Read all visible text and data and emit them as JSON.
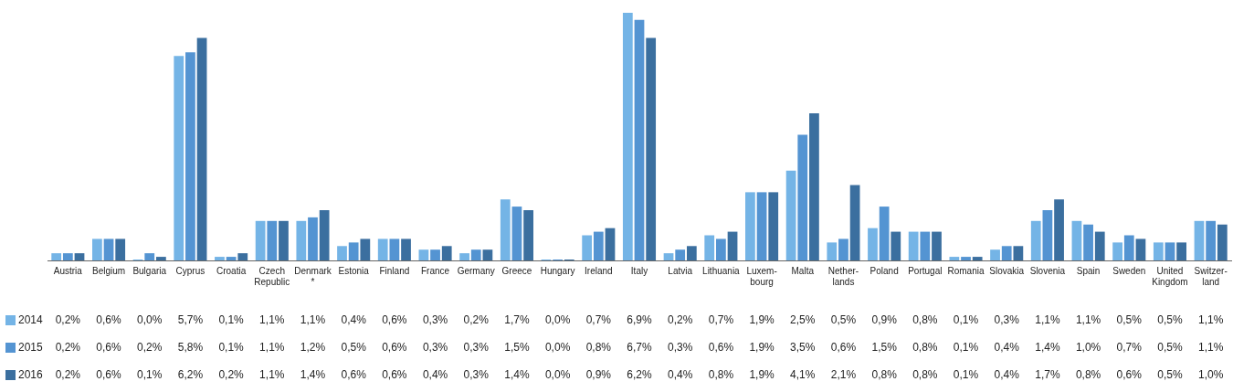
{
  "chart_data": {
    "type": "bar",
    "categories": [
      "Austria",
      "Belgium",
      "Bulgaria",
      "Cyprus",
      "Croatia",
      "Czech Republic",
      "Denmark *",
      "Estonia",
      "Finland",
      "France",
      "Germany",
      "Greece",
      "Hungary",
      "Ireland",
      "Italy",
      "Latvia",
      "Lithuania",
      "Luxem- bourg",
      "Malta",
      "Nether- lands",
      "Poland",
      "Portugal",
      "Romania",
      "Slovakia",
      "Slovenia",
      "Spain",
      "Sweden",
      "United Kingdom",
      "Switzer- land"
    ],
    "series": [
      {
        "name": "2014",
        "color": "#74b4e6",
        "values": [
          0.2,
          0.6,
          0.0,
          5.7,
          0.1,
          1.1,
          1.1,
          0.4,
          0.6,
          0.3,
          0.2,
          1.7,
          0.0,
          0.7,
          6.9,
          0.2,
          0.7,
          1.9,
          2.5,
          0.5,
          0.9,
          0.8,
          0.1,
          0.3,
          1.1,
          1.1,
          0.5,
          0.5,
          1.1
        ],
        "value_labels": [
          "0,2%",
          "0,6%",
          "0,0%",
          "5,7%",
          "0,1%",
          "1,1%",
          "1,1%",
          "0,4%",
          "0,6%",
          "0,3%",
          "0,2%",
          "1,7%",
          "0,0%",
          "0,7%",
          "6,9%",
          "0,2%",
          "0,7%",
          "1,9%",
          "2,5%",
          "0,5%",
          "0,9%",
          "0,8%",
          "0,1%",
          "0,3%",
          "1,1%",
          "1,1%",
          "0,5%",
          "0,5%",
          "1,1%"
        ]
      },
      {
        "name": "2015",
        "color": "#5494d2",
        "values": [
          0.2,
          0.6,
          0.2,
          5.8,
          0.1,
          1.1,
          1.2,
          0.5,
          0.6,
          0.3,
          0.3,
          1.5,
          0.0,
          0.8,
          6.7,
          0.3,
          0.6,
          1.9,
          3.5,
          0.6,
          1.5,
          0.8,
          0.1,
          0.4,
          1.4,
          1.0,
          0.7,
          0.5,
          1.1
        ],
        "value_labels": [
          "0,2%",
          "0,6%",
          "0,2%",
          "5,8%",
          "0,1%",
          "1,1%",
          "1,2%",
          "0,5%",
          "0,6%",
          "0,3%",
          "0,3%",
          "1,5%",
          "0,0%",
          "0,8%",
          "6,7%",
          "0,3%",
          "0,6%",
          "1,9%",
          "3,5%",
          "0,6%",
          "1,5%",
          "0,8%",
          "0,1%",
          "0,4%",
          "1,4%",
          "1,0%",
          "0,7%",
          "0,5%",
          "1,1%"
        ]
      },
      {
        "name": "2016",
        "color": "#3b6f9f",
        "values": [
          0.2,
          0.6,
          0.1,
          6.2,
          0.2,
          1.1,
          1.4,
          0.6,
          0.6,
          0.4,
          0.3,
          1.4,
          0.0,
          0.9,
          6.2,
          0.4,
          0.8,
          1.9,
          4.1,
          2.1,
          0.8,
          0.8,
          0.1,
          0.4,
          1.7,
          0.8,
          0.6,
          0.5,
          1.0
        ],
        "value_labels": [
          "0,2%",
          "0,6%",
          "0,1%",
          "6,2%",
          "0,2%",
          "1,1%",
          "1,4%",
          "0,6%",
          "0,6%",
          "0,4%",
          "0,3%",
          "1,4%",
          "0,0%",
          "0,9%",
          "6,2%",
          "0,4%",
          "0,8%",
          "1,9%",
          "4,1%",
          "2,1%",
          "0,8%",
          "0,8%",
          "0,1%",
          "0,4%",
          "1,7%",
          "0,8%",
          "0,6%",
          "0,5%",
          "1,0%"
        ]
      }
    ],
    "legend": "bottom left",
    "grid": false
  }
}
